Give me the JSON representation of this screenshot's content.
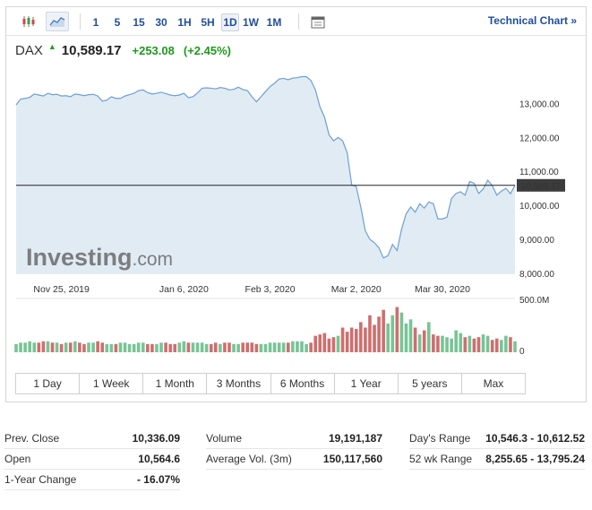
{
  "toolbar": {
    "timeframes": [
      "1",
      "5",
      "15",
      "30",
      "1H",
      "5H",
      "1D",
      "1W",
      "1M"
    ],
    "selected_timeframe": "1D",
    "tech_link": "Technical Chart »"
  },
  "quote": {
    "name": "DAX",
    "price": "10,589.17",
    "change": "+253.08",
    "change_pct": "(+2.45%)"
  },
  "chart_data": {
    "type": "area",
    "ytick_labels": [
      "13,000.00",
      "12,000.00",
      "11,000.00",
      "10,000.00",
      "9,000.00",
      "8,000.00"
    ],
    "yticks": [
      13000,
      12000,
      11000,
      10000,
      9000,
      8000
    ],
    "ylim": [
      7970,
      14200
    ],
    "xtick_labels": [
      "Nov 25, 2019",
      "Jan 6, 2020",
      "Feb 3, 2020",
      "Mar 2, 2020",
      "Mar 30, 2020"
    ],
    "xtick_index": [
      10,
      37,
      56,
      75,
      94
    ],
    "last_price_label": "10,589.17",
    "last_price": 10589.17,
    "volume_max_label": "500.0M",
    "volume_min_label": "0",
    "watermark": "Investing.com",
    "close": [
      12960,
      13130,
      13150,
      13180,
      13280,
      13250,
      13220,
      13300,
      13260,
      13270,
      13220,
      13230,
      13200,
      13280,
      13260,
      13230,
      13260,
      13270,
      13220,
      13070,
      13100,
      13200,
      13150,
      13150,
      13220,
      13260,
      13300,
      13380,
      13400,
      13320,
      13280,
      13300,
      13330,
      13290,
      13250,
      13230,
      13250,
      13300,
      13170,
      13200,
      13310,
      13450,
      13460,
      13450,
      13430,
      13470,
      13450,
      13400,
      13420,
      13480,
      13410,
      13380,
      13200,
      13050,
      13200,
      13350,
      13500,
      13600,
      13720,
      13740,
      13700,
      13750,
      13760,
      13790,
      13790,
      13680,
      13400,
      12900,
      12600,
      12080,
      11900,
      12000,
      11900,
      11550,
      10600,
      10550,
      9950,
      9250,
      9000,
      8900,
      8750,
      8450,
      8520,
      8850,
      8670,
      9300,
      9750,
      9950,
      9800,
      10050,
      9920,
      10100,
      10050,
      9600,
      9600,
      9650,
      10200,
      10350,
      10400,
      10300,
      10700,
      10650,
      10350,
      10480,
      10740,
      10580,
      10300,
      10420,
      10500,
      10340,
      10589
    ],
    "volume": [
      0.06,
      0.07,
      0.07,
      0.08,
      0.07,
      0.07,
      0.08,
      0.08,
      0.07,
      0.07,
      0.06,
      0.07,
      0.07,
      0.08,
      0.07,
      0.06,
      0.07,
      0.07,
      0.08,
      0.07,
      0.06,
      0.06,
      0.06,
      0.07,
      0.07,
      0.06,
      0.06,
      0.07,
      0.07,
      0.06,
      0.06,
      0.06,
      0.07,
      0.07,
      0.06,
      0.06,
      0.07,
      0.08,
      0.07,
      0.07,
      0.07,
      0.07,
      0.06,
      0.06,
      0.07,
      0.06,
      0.07,
      0.07,
      0.06,
      0.06,
      0.07,
      0.07,
      0.07,
      0.06,
      0.06,
      0.06,
      0.07,
      0.07,
      0.07,
      0.07,
      0.07,
      0.08,
      0.08,
      0.08,
      0.06,
      0.07,
      0.12,
      0.13,
      0.14,
      0.1,
      0.11,
      0.12,
      0.18,
      0.15,
      0.18,
      0.17,
      0.22,
      0.18,
      0.27,
      0.2,
      0.26,
      0.31,
      0.21,
      0.27,
      0.33,
      0.29,
      0.21,
      0.24,
      0.18,
      0.13,
      0.16,
      0.22,
      0.13,
      0.12,
      0.12,
      0.11,
      0.1,
      0.16,
      0.14,
      0.11,
      0.12,
      0.1,
      0.11,
      0.13,
      0.12,
      0.09,
      0.1,
      0.09,
      0.12,
      0.11,
      0.08
    ]
  },
  "range_buttons": [
    "1 Day",
    "1 Week",
    "1 Month",
    "3 Months",
    "6 Months",
    "1 Year",
    "5 years",
    "Max"
  ],
  "stats": {
    "col1": [
      {
        "label": "Prev. Close",
        "value": "10,336.09"
      },
      {
        "label": "Open",
        "value": "10,564.6"
      },
      {
        "label": "1-Year Change",
        "value": "- 16.07%"
      }
    ],
    "col2": [
      {
        "label": "Volume",
        "value": "19,191,187"
      },
      {
        "label": "Average Vol. (3m)",
        "value": "150,117,560"
      }
    ],
    "col3": [
      {
        "label": "Day's Range",
        "value": "10,546.3 - 10,612.52"
      },
      {
        "label": "52 wk Range",
        "value": "8,255.65 - 13,795.24"
      }
    ]
  },
  "colors": {
    "line": "#6d9fd3",
    "area": "#e1ebf4",
    "up_bar": "#78c496",
    "down_bar": "#cf6e6e",
    "link": "#1f4e9c",
    "positive": "#1c9a1c"
  }
}
